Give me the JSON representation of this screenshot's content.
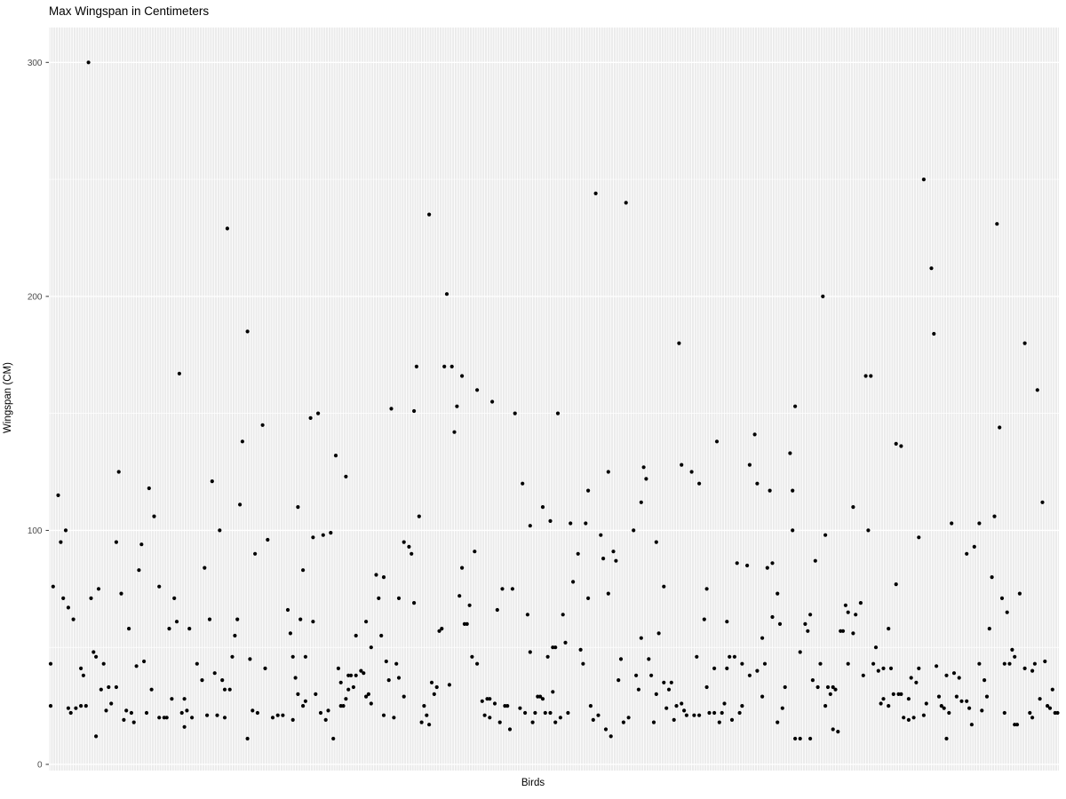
{
  "chart_data": {
    "type": "scatter",
    "title": "Max Wingspan in Centimeters",
    "xlabel": "Birds",
    "ylabel": "Wingspan (CM)",
    "legend": "none",
    "grid": true,
    "x_axis": {
      "kind": "categorical",
      "n_categories": 400,
      "tick_labels_visible": false
    },
    "y_ticks": [
      0,
      100,
      200,
      300
    ],
    "y_minor_ticks": [
      50,
      150,
      250
    ],
    "ylim": [
      -4,
      315
    ],
    "points": [
      [
        1,
        43
      ],
      [
        1,
        25
      ],
      [
        2,
        76
      ],
      [
        4,
        115
      ],
      [
        5,
        95
      ],
      [
        6,
        71
      ],
      [
        7,
        100
      ],
      [
        8,
        67
      ],
      [
        8,
        24
      ],
      [
        9,
        22
      ],
      [
        10,
        62
      ],
      [
        11,
        24
      ],
      [
        13,
        41
      ],
      [
        13,
        25
      ],
      [
        14,
        38
      ],
      [
        15,
        25
      ],
      [
        16,
        300
      ],
      [
        17,
        71
      ],
      [
        18,
        48
      ],
      [
        19,
        46
      ],
      [
        19,
        12
      ],
      [
        20,
        75
      ],
      [
        21,
        32
      ],
      [
        22,
        43
      ],
      [
        23,
        23
      ],
      [
        24,
        33
      ],
      [
        25,
        26
      ],
      [
        27,
        95
      ],
      [
        27,
        33
      ],
      [
        28,
        125
      ],
      [
        29,
        73
      ],
      [
        30,
        19
      ],
      [
        31,
        23
      ],
      [
        32,
        58
      ],
      [
        33,
        22
      ],
      [
        34,
        18
      ],
      [
        35,
        42
      ],
      [
        36,
        83
      ],
      [
        37,
        94
      ],
      [
        38,
        44
      ],
      [
        39,
        22
      ],
      [
        40,
        118
      ],
      [
        41,
        32
      ],
      [
        42,
        106
      ],
      [
        44,
        76
      ],
      [
        44,
        20
      ],
      [
        46,
        20
      ],
      [
        47,
        20
      ],
      [
        48,
        58
      ],
      [
        49,
        28
      ],
      [
        50,
        71
      ],
      [
        51,
        61
      ],
      [
        52,
        167
      ],
      [
        53,
        22
      ],
      [
        54,
        28
      ],
      [
        54,
        16
      ],
      [
        55,
        23
      ],
      [
        56,
        58
      ],
      [
        57,
        20
      ],
      [
        59,
        43
      ],
      [
        61,
        36
      ],
      [
        62,
        84
      ],
      [
        63,
        21
      ],
      [
        64,
        62
      ],
      [
        65,
        121
      ],
      [
        66,
        39
      ],
      [
        67,
        21
      ],
      [
        68,
        100
      ],
      [
        69,
        36
      ],
      [
        70,
        32
      ],
      [
        70,
        20
      ],
      [
        71,
        229
      ],
      [
        72,
        32
      ],
      [
        73,
        46
      ],
      [
        74,
        55
      ],
      [
        75,
        62
      ],
      [
        76,
        111
      ],
      [
        77,
        138
      ],
      [
        79,
        185
      ],
      [
        79,
        11
      ],
      [
        80,
        45
      ],
      [
        81,
        23
      ],
      [
        82,
        90
      ],
      [
        83,
        22
      ],
      [
        85,
        145
      ],
      [
        86,
        41
      ],
      [
        87,
        96
      ],
      [
        89,
        20
      ],
      [
        91,
        21
      ],
      [
        93,
        21
      ],
      [
        95,
        66
      ],
      [
        96,
        56
      ],
      [
        97,
        46
      ],
      [
        97,
        19
      ],
      [
        98,
        37
      ],
      [
        99,
        110
      ],
      [
        99,
        30
      ],
      [
        100,
        62
      ],
      [
        101,
        83
      ],
      [
        101,
        25
      ],
      [
        102,
        46
      ],
      [
        102,
        27
      ],
      [
        104,
        148
      ],
      [
        105,
        97
      ],
      [
        105,
        61
      ],
      [
        106,
        30
      ],
      [
        107,
        150
      ],
      [
        108,
        22
      ],
      [
        109,
        98
      ],
      [
        110,
        19
      ],
      [
        111,
        23
      ],
      [
        112,
        99
      ],
      [
        113,
        11
      ],
      [
        114,
        132
      ],
      [
        115,
        41
      ],
      [
        116,
        35
      ],
      [
        116,
        25
      ],
      [
        117,
        25
      ],
      [
        118,
        123
      ],
      [
        118,
        28
      ],
      [
        119,
        38
      ],
      [
        119,
        32
      ],
      [
        120,
        38
      ],
      [
        121,
        33
      ],
      [
        122,
        55
      ],
      [
        122,
        38
      ],
      [
        124,
        40
      ],
      [
        125,
        39
      ],
      [
        126,
        61
      ],
      [
        126,
        29
      ],
      [
        127,
        30
      ],
      [
        128,
        50
      ],
      [
        128,
        26
      ],
      [
        130,
        81
      ],
      [
        131,
        71
      ],
      [
        132,
        55
      ],
      [
        133,
        80
      ],
      [
        133,
        21
      ],
      [
        134,
        44
      ],
      [
        135,
        36
      ],
      [
        136,
        152
      ],
      [
        137,
        20
      ],
      [
        138,
        43
      ],
      [
        139,
        71
      ],
      [
        139,
        37
      ],
      [
        141,
        95
      ],
      [
        141,
        29
      ],
      [
        143,
        93
      ],
      [
        144,
        90
      ],
      [
        145,
        151
      ],
      [
        145,
        69
      ],
      [
        146,
        170
      ],
      [
        147,
        106
      ],
      [
        148,
        18
      ],
      [
        149,
        25
      ],
      [
        150,
        21
      ],
      [
        151,
        235
      ],
      [
        151,
        17
      ],
      [
        152,
        35
      ],
      [
        153,
        30
      ],
      [
        154,
        33
      ],
      [
        155,
        57
      ],
      [
        156,
        58
      ],
      [
        157,
        170
      ],
      [
        158,
        201
      ],
      [
        159,
        34
      ],
      [
        160,
        170
      ],
      [
        161,
        142
      ],
      [
        162,
        153
      ],
      [
        163,
        72
      ],
      [
        164,
        166
      ],
      [
        164,
        84
      ],
      [
        165,
        60
      ],
      [
        166,
        60
      ],
      [
        167,
        68
      ],
      [
        168,
        46
      ],
      [
        169,
        91
      ],
      [
        170,
        160
      ],
      [
        170,
        43
      ],
      [
        172,
        27
      ],
      [
        173,
        21
      ],
      [
        174,
        28
      ],
      [
        175,
        28
      ],
      [
        175,
        20
      ],
      [
        176,
        155
      ],
      [
        177,
        26
      ],
      [
        178,
        66
      ],
      [
        179,
        18
      ],
      [
        180,
        75
      ],
      [
        181,
        25
      ],
      [
        182,
        25
      ],
      [
        183,
        15
      ],
      [
        184,
        75
      ],
      [
        185,
        150
      ],
      [
        187,
        24
      ],
      [
        188,
        120
      ],
      [
        189,
        22
      ],
      [
        190,
        64
      ],
      [
        191,
        102
      ],
      [
        191,
        48
      ],
      [
        192,
        18
      ],
      [
        193,
        22
      ],
      [
        194,
        29
      ],
      [
        195,
        29
      ],
      [
        196,
        110
      ],
      [
        196,
        28
      ],
      [
        197,
        22
      ],
      [
        198,
        46
      ],
      [
        199,
        104
      ],
      [
        199,
        22
      ],
      [
        200,
        50
      ],
      [
        200,
        31
      ],
      [
        201,
        50
      ],
      [
        201,
        18
      ],
      [
        202,
        150
      ],
      [
        203,
        20
      ],
      [
        204,
        64
      ],
      [
        205,
        52
      ],
      [
        206,
        22
      ],
      [
        207,
        103
      ],
      [
        208,
        78
      ],
      [
        210,
        90
      ],
      [
        211,
        49
      ],
      [
        212,
        43
      ],
      [
        213,
        103
      ],
      [
        214,
        117
      ],
      [
        214,
        71
      ],
      [
        215,
        25
      ],
      [
        216,
        19
      ],
      [
        217,
        244
      ],
      [
        218,
        21
      ],
      [
        219,
        98
      ],
      [
        220,
        88
      ],
      [
        221,
        15
      ],
      [
        222,
        125
      ],
      [
        222,
        73
      ],
      [
        223,
        12
      ],
      [
        224,
        91
      ],
      [
        225,
        87
      ],
      [
        226,
        36
      ],
      [
        227,
        45
      ],
      [
        228,
        18
      ],
      [
        229,
        240
      ],
      [
        230,
        20
      ],
      [
        232,
        100
      ],
      [
        233,
        38
      ],
      [
        234,
        32
      ],
      [
        235,
        112
      ],
      [
        235,
        54
      ],
      [
        236,
        127
      ],
      [
        237,
        122
      ],
      [
        238,
        45
      ],
      [
        239,
        38
      ],
      [
        240,
        18
      ],
      [
        241,
        95
      ],
      [
        241,
        30
      ],
      [
        242,
        56
      ],
      [
        244,
        76
      ],
      [
        244,
        35
      ],
      [
        245,
        24
      ],
      [
        246,
        32
      ],
      [
        247,
        35
      ],
      [
        248,
        19
      ],
      [
        249,
        25
      ],
      [
        250,
        180
      ],
      [
        251,
        128
      ],
      [
        251,
        26
      ],
      [
        252,
        23
      ],
      [
        253,
        21
      ],
      [
        255,
        125
      ],
      [
        256,
        21
      ],
      [
        257,
        46
      ],
      [
        258,
        120
      ],
      [
        258,
        21
      ],
      [
        260,
        62
      ],
      [
        261,
        75
      ],
      [
        261,
        33
      ],
      [
        262,
        22
      ],
      [
        264,
        41
      ],
      [
        264,
        22
      ],
      [
        265,
        138
      ],
      [
        266,
        18
      ],
      [
        267,
        22
      ],
      [
        268,
        26
      ],
      [
        269,
        61
      ],
      [
        269,
        41
      ],
      [
        270,
        46
      ],
      [
        271,
        19
      ],
      [
        272,
        46
      ],
      [
        273,
        86
      ],
      [
        274,
        22
      ],
      [
        275,
        43
      ],
      [
        275,
        25
      ],
      [
        277,
        85
      ],
      [
        278,
        128
      ],
      [
        278,
        38
      ],
      [
        280,
        141
      ],
      [
        281,
        120
      ],
      [
        281,
        40
      ],
      [
        283,
        54
      ],
      [
        283,
        29
      ],
      [
        284,
        43
      ],
      [
        285,
        84
      ],
      [
        286,
        117
      ],
      [
        287,
        86
      ],
      [
        287,
        63
      ],
      [
        289,
        73
      ],
      [
        289,
        18
      ],
      [
        290,
        60
      ],
      [
        291,
        24
      ],
      [
        292,
        33
      ],
      [
        294,
        133
      ],
      [
        295,
        117
      ],
      [
        295,
        100
      ],
      [
        296,
        153
      ],
      [
        296,
        11
      ],
      [
        298,
        48
      ],
      [
        298,
        11
      ],
      [
        300,
        60
      ],
      [
        301,
        57
      ],
      [
        302,
        64
      ],
      [
        302,
        11
      ],
      [
        303,
        36
      ],
      [
        304,
        87
      ],
      [
        305,
        33
      ],
      [
        306,
        43
      ],
      [
        307,
        200
      ],
      [
        308,
        98
      ],
      [
        308,
        25
      ],
      [
        309,
        33
      ],
      [
        310,
        30
      ],
      [
        311,
        33
      ],
      [
        311,
        15
      ],
      [
        312,
        32
      ],
      [
        313,
        14
      ],
      [
        314,
        57
      ],
      [
        315,
        57
      ],
      [
        316,
        68
      ],
      [
        317,
        65
      ],
      [
        317,
        43
      ],
      [
        319,
        110
      ],
      [
        319,
        56
      ],
      [
        320,
        64
      ],
      [
        322,
        69
      ],
      [
        323,
        38
      ],
      [
        324,
        166
      ],
      [
        325,
        100
      ],
      [
        326,
        166
      ],
      [
        327,
        43
      ],
      [
        328,
        50
      ],
      [
        329,
        40
      ],
      [
        330,
        26
      ],
      [
        331,
        41
      ],
      [
        331,
        28
      ],
      [
        333,
        58
      ],
      [
        333,
        25
      ],
      [
        334,
        41
      ],
      [
        335,
        30
      ],
      [
        336,
        137
      ],
      [
        336,
        77
      ],
      [
        337,
        30
      ],
      [
        338,
        136
      ],
      [
        338,
        30
      ],
      [
        339,
        20
      ],
      [
        341,
        28
      ],
      [
        341,
        19
      ],
      [
        342,
        37
      ],
      [
        343,
        20
      ],
      [
        344,
        35
      ],
      [
        345,
        97
      ],
      [
        345,
        41
      ],
      [
        347,
        250
      ],
      [
        347,
        21
      ],
      [
        348,
        26
      ],
      [
        350,
        212
      ],
      [
        351,
        184
      ],
      [
        352,
        42
      ],
      [
        353,
        29
      ],
      [
        354,
        25
      ],
      [
        355,
        24
      ],
      [
        356,
        38
      ],
      [
        356,
        11
      ],
      [
        357,
        22
      ],
      [
        358,
        103
      ],
      [
        359,
        39
      ],
      [
        360,
        29
      ],
      [
        361,
        37
      ],
      [
        362,
        27
      ],
      [
        364,
        90
      ],
      [
        364,
        27
      ],
      [
        365,
        24
      ],
      [
        366,
        17
      ],
      [
        367,
        93
      ],
      [
        369,
        103
      ],
      [
        369,
        43
      ],
      [
        370,
        23
      ],
      [
        371,
        36
      ],
      [
        372,
        29
      ],
      [
        373,
        58
      ],
      [
        374,
        80
      ],
      [
        375,
        106
      ],
      [
        376,
        231
      ],
      [
        377,
        144
      ],
      [
        378,
        71
      ],
      [
        379,
        43
      ],
      [
        379,
        22
      ],
      [
        380,
        65
      ],
      [
        381,
        43
      ],
      [
        382,
        49
      ],
      [
        383,
        46
      ],
      [
        383,
        17
      ],
      [
        384,
        17
      ],
      [
        385,
        73
      ],
      [
        387,
        180
      ],
      [
        387,
        41
      ],
      [
        389,
        22
      ],
      [
        390,
        20
      ],
      [
        390,
        40
      ],
      [
        391,
        43
      ],
      [
        392,
        160
      ],
      [
        393,
        28
      ],
      [
        394,
        112
      ],
      [
        395,
        44
      ],
      [
        396,
        25
      ],
      [
        397,
        24
      ],
      [
        398,
        32
      ],
      [
        399,
        22
      ],
      [
        400,
        22
      ]
    ]
  },
  "style": {
    "bg": "#FFFFFF",
    "panel_bg": "#EBEBEB",
    "grid_color": "#FFFFFF",
    "point_color": "#000000",
    "tick_label_color": "#4D4D4D",
    "axis_tick_color": "#333333",
    "text_color": "#000000"
  }
}
